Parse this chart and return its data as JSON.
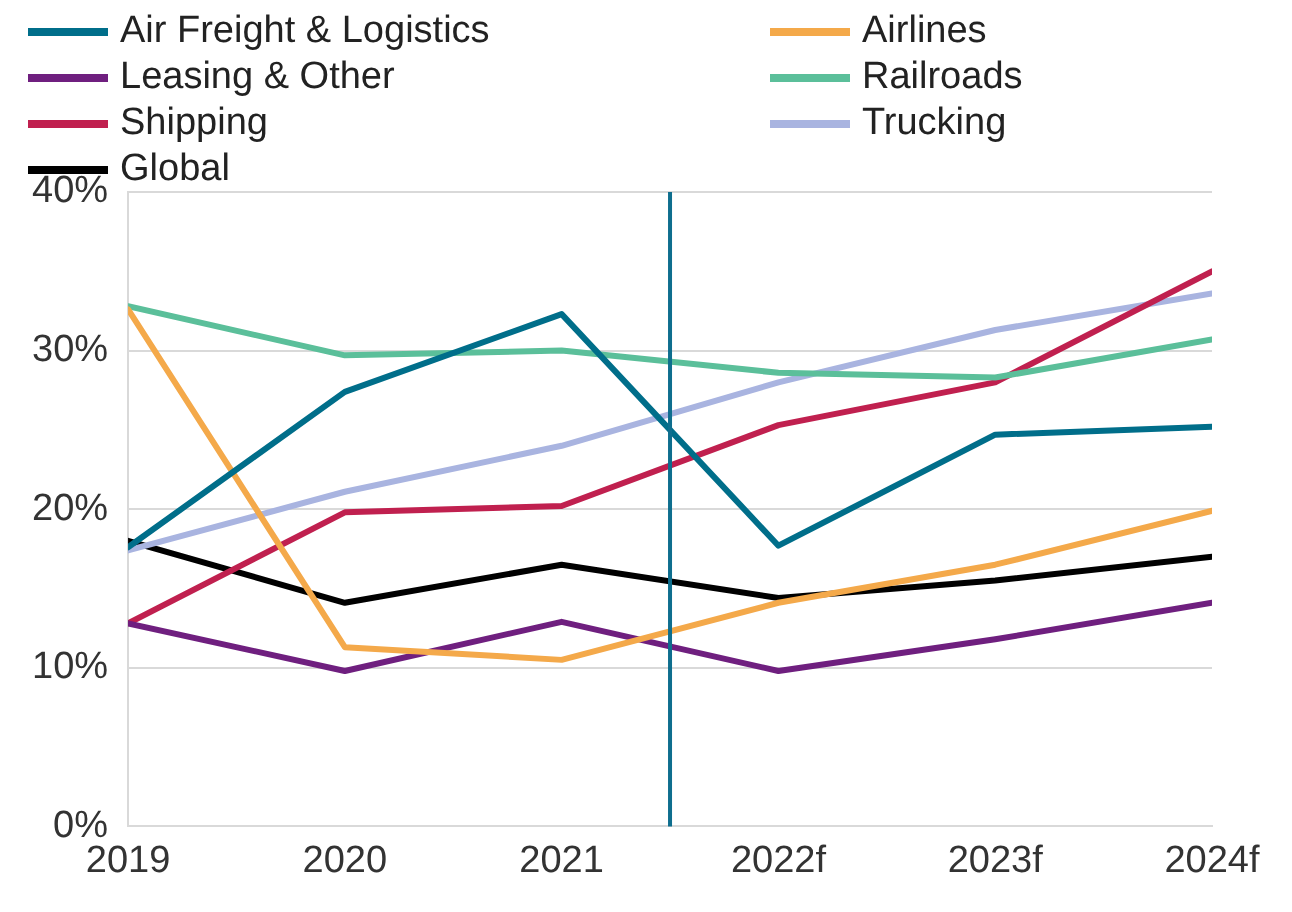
{
  "chart_data": {
    "type": "line",
    "x": [
      2019,
      2020,
      2021,
      2022,
      2023,
      2024
    ],
    "xlim": [
      2019,
      2024
    ],
    "xticks": [
      2019,
      2020,
      2021,
      {
        "value": 2022,
        "label": "2022f"
      },
      {
        "value": 2023,
        "label": "2023f"
      },
      {
        "value": 2024,
        "label": "2024f"
      }
    ],
    "ylim": [
      0,
      40
    ],
    "yticks": [
      {
        "value": 0,
        "label": "0%"
      },
      {
        "value": 10,
        "label": "10%"
      },
      {
        "value": 20,
        "label": "20%"
      },
      {
        "value": 30,
        "label": "30%"
      },
      {
        "value": 40,
        "label": "40%"
      }
    ],
    "grid": "y",
    "legend": "top",
    "marker": "none",
    "ref_lines": [
      {
        "axis": "x",
        "value": 2021.5,
        "color": "#0e6e8e"
      }
    ],
    "series": [
      {
        "name": "Air Freight & Logistics",
        "color": "#006e8a",
        "values": [
          17.6,
          27.4,
          32.3,
          17.7,
          24.7,
          25.2
        ]
      },
      {
        "name": "Airlines",
        "color": "#f4a94a",
        "values": [
          32.6,
          11.3,
          10.5,
          14.1,
          16.5,
          19.9
        ]
      },
      {
        "name": "Leasing & Other",
        "color": "#6f1f7f",
        "values": [
          12.8,
          9.8,
          12.9,
          9.8,
          11.8,
          14.1
        ]
      },
      {
        "name": "Railroads",
        "color": "#5bbf9a",
        "values": [
          32.8,
          29.7,
          30.0,
          28.6,
          28.3,
          30.7
        ]
      },
      {
        "name": "Shipping",
        "color": "#c0204f",
        "values": [
          12.8,
          19.8,
          20.2,
          25.3,
          28.0,
          35.0
        ]
      },
      {
        "name": "Trucking",
        "color": "#a9b4e0",
        "values": [
          17.4,
          21.1,
          24.0,
          28.0,
          31.3,
          33.6
        ]
      },
      {
        "name": "Global",
        "color": "#000000",
        "values": [
          18.0,
          14.1,
          16.5,
          14.4,
          15.5,
          17.0
        ]
      }
    ]
  }
}
